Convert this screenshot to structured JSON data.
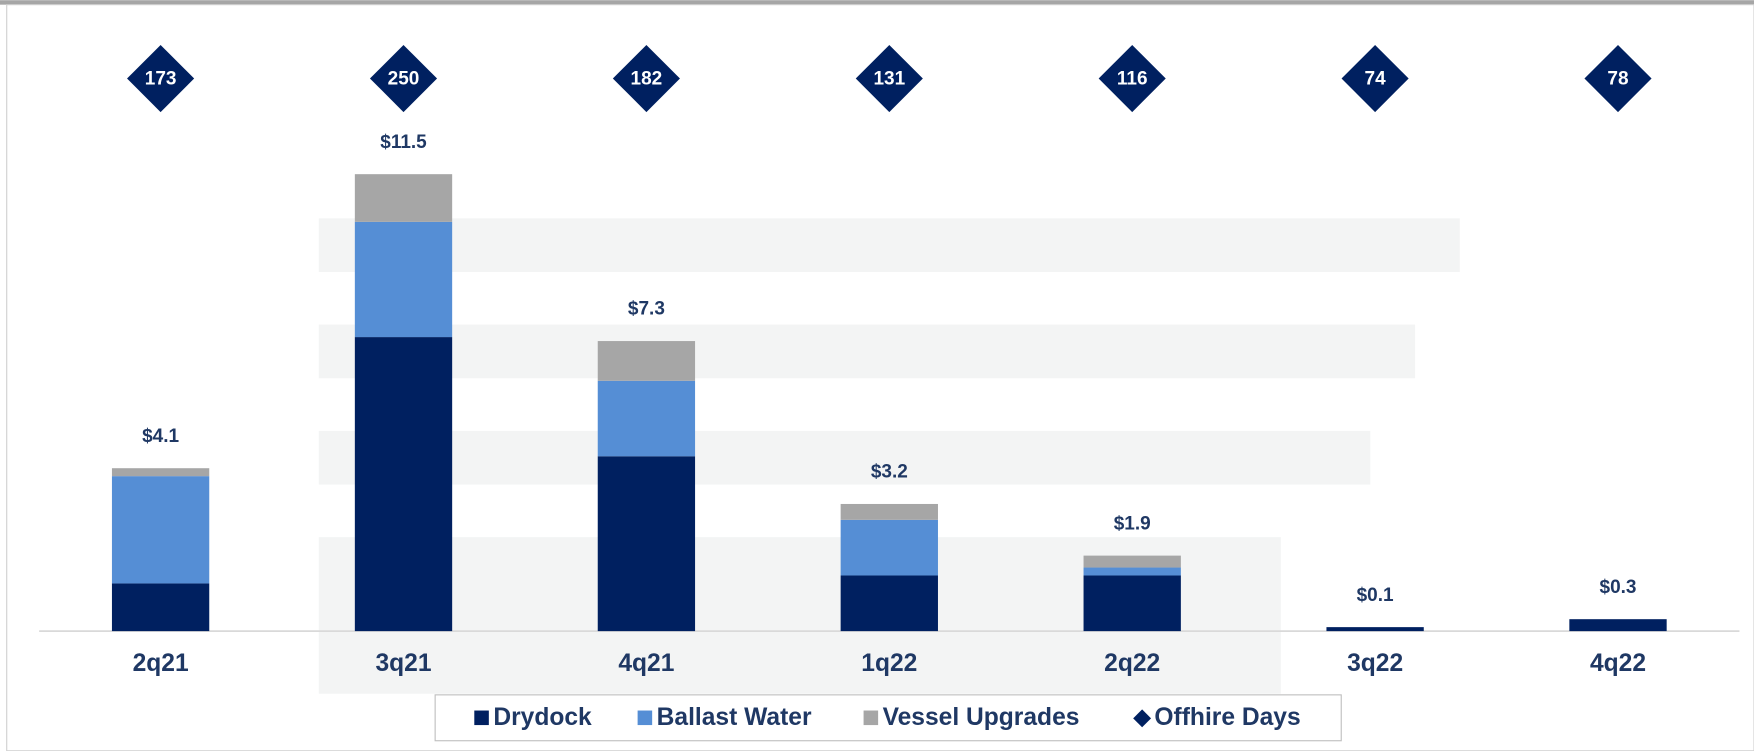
{
  "chart_data": {
    "type": "stacked_bar",
    "categories": [
      "2q21",
      "3q21",
      "4q21",
      "1q22",
      "2q22",
      "3q22",
      "4q22"
    ],
    "series": [
      {
        "name": "Drydock",
        "color": "#002060",
        "values": [
          1.2,
          7.4,
          4.4,
          1.4,
          1.4,
          0.1,
          0.3
        ]
      },
      {
        "name": "Ballast Water",
        "color": "#558ed5",
        "values": [
          2.7,
          2.9,
          1.9,
          1.4,
          0.2,
          0,
          0
        ]
      },
      {
        "name": "Vessel Upgrades",
        "color": "#a6a6a6",
        "values": [
          0.2,
          1.2,
          1.0,
          0.4,
          0.3,
          0,
          0
        ]
      }
    ],
    "totals": [
      4.1,
      11.5,
      7.3,
      3.2,
      1.9,
      0.1,
      0.3
    ],
    "total_labels": [
      "$4.1",
      "$11.5",
      "$7.3",
      "$3.2",
      "$1.9",
      "$0.1",
      "$0.3"
    ],
    "offhire": {
      "name": "Offhire Days",
      "color": "#002060",
      "values": [
        173,
        250,
        182,
        131,
        116,
        74,
        78
      ]
    },
    "ylim": [
      0,
      12.5
    ],
    "legend": "bottom"
  }
}
